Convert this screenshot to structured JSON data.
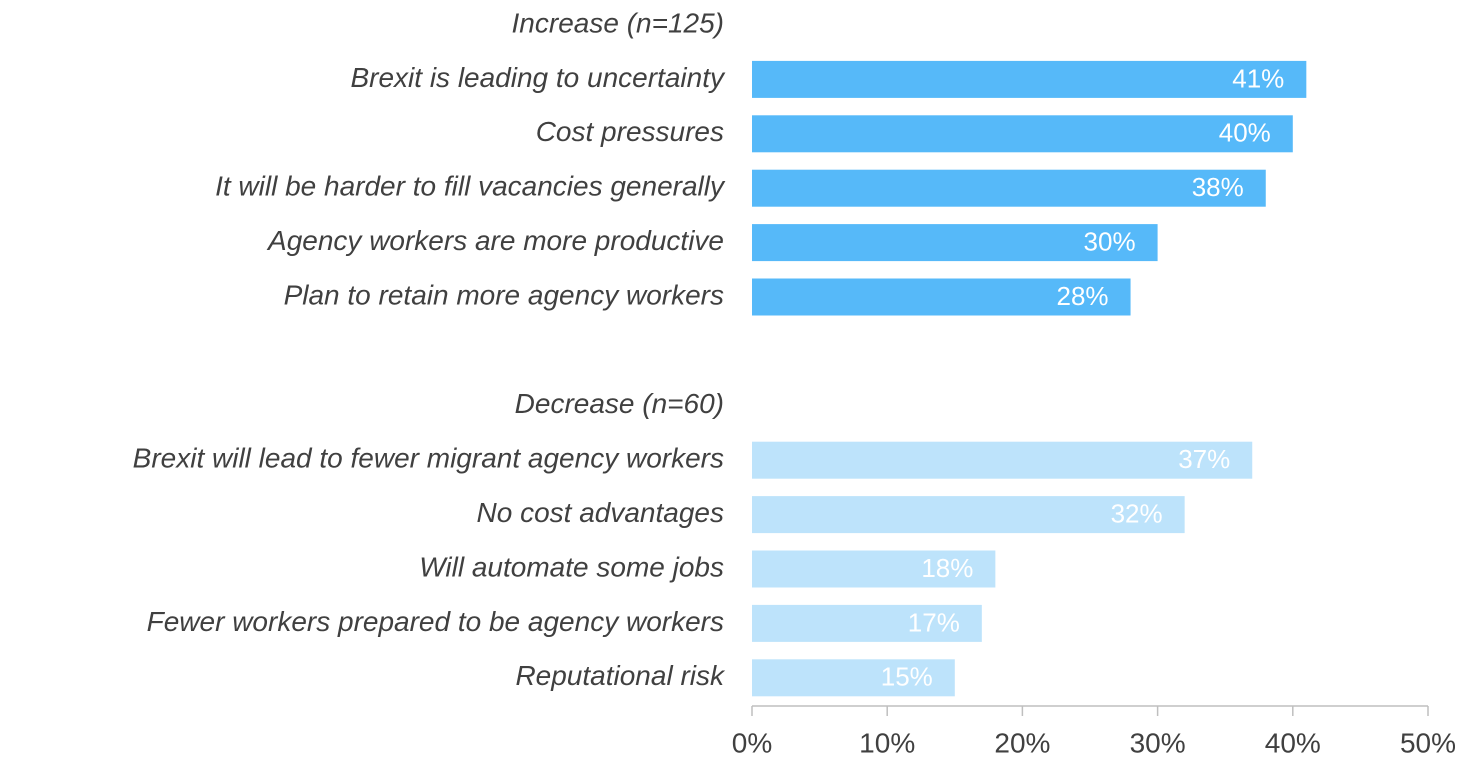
{
  "chart_data": {
    "type": "bar",
    "groups": [
      {
        "label": "Increase (n=125)",
        "color": "#56b9f9",
        "categories": [
          "Brexit is leading to uncertainty",
          "Cost pressures",
          "It will be harder to fill vacancies generally",
          "Agency workers are more productive",
          "Plan to retain more agency workers"
        ],
        "values": [
          41,
          40,
          38,
          30,
          28
        ],
        "value_labels": [
          "41%",
          "40%",
          "38%",
          "30%",
          "28%"
        ]
      },
      {
        "label": "Decrease (n=60)",
        "color": "#bde3fb",
        "categories": [
          "Brexit will lead to fewer migrant agency workers",
          "No cost advantages",
          "Will automate some jobs",
          "Fewer workers prepared to be agency workers",
          "Reputational risk"
        ],
        "values": [
          37,
          32,
          18,
          17,
          15
        ],
        "value_labels": [
          "37%",
          "32%",
          "18%",
          "17%",
          "15%"
        ]
      }
    ],
    "xlim": [
      0,
      50
    ],
    "xticks": [
      {
        "value": 0,
        "label": "0%"
      },
      {
        "value": 10,
        "label": "10%"
      },
      {
        "value": 20,
        "label": "20%"
      },
      {
        "value": 30,
        "label": "30%"
      },
      {
        "value": 40,
        "label": "40%"
      },
      {
        "value": 50,
        "label": "50%"
      }
    ]
  }
}
